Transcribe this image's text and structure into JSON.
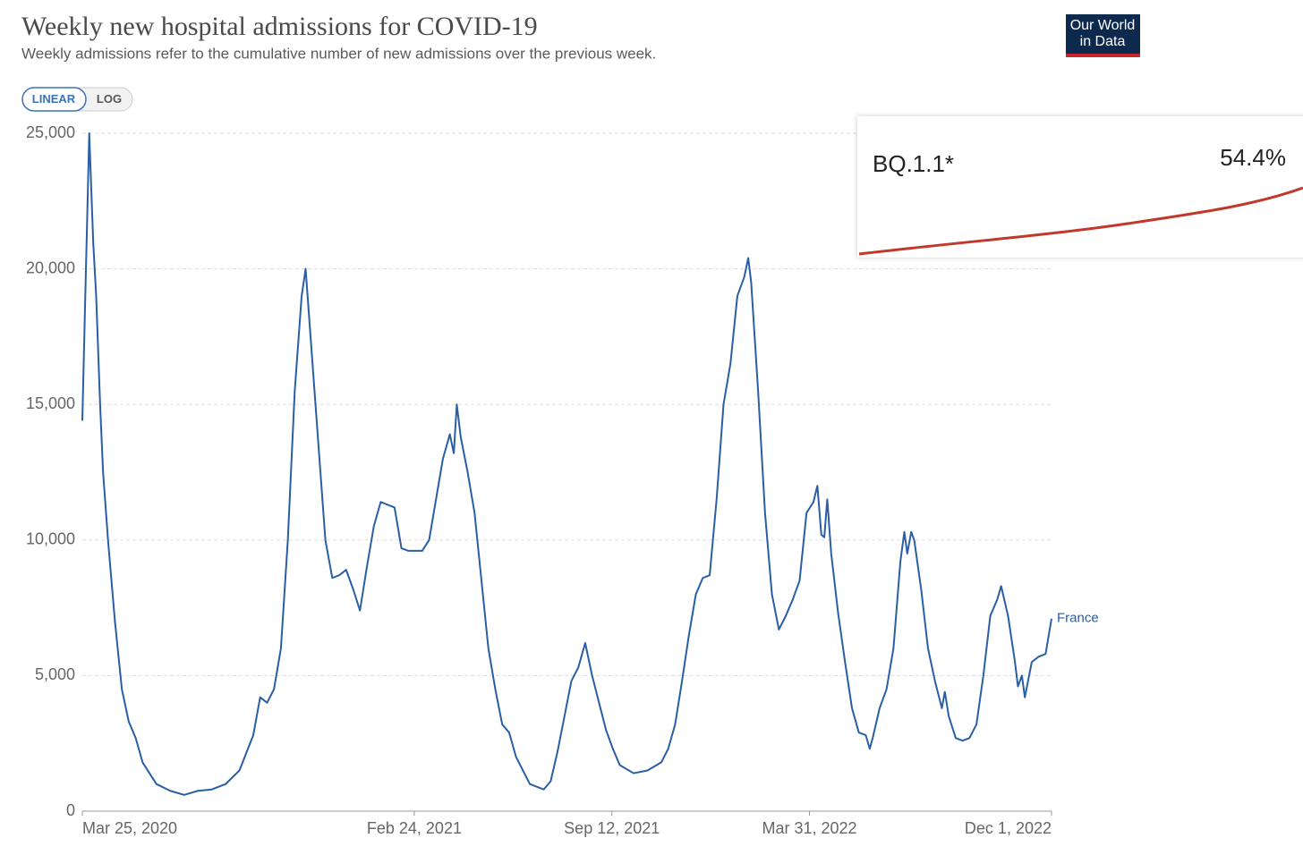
{
  "header": {
    "logo": [
      "Our World",
      "in Data"
    ]
  },
  "controls": [
    "LINEAR",
    "LOG"
  ],
  "overlay": {
    "label": "BQ.1.1*",
    "value": "54.4%"
  },
  "chart_data": {
    "type": "line",
    "title": "Weekly new hospital admissions for COVID-19",
    "subtitle": "Weekly admissions refer to the cumulative number of new admissions over the previous week.",
    "x": [
      "2020-03-25",
      "2020-03-28",
      "2020-04-01",
      "2020-04-05",
      "2020-04-08",
      "2020-04-12",
      "2020-04-15",
      "2020-04-20",
      "2020-04-27",
      "2020-05-04",
      "2020-05-11",
      "2020-05-18",
      "2020-05-25",
      "2020-06-08",
      "2020-06-22",
      "2020-07-06",
      "2020-07-20",
      "2020-08-03",
      "2020-08-17",
      "2020-08-31",
      "2020-09-14",
      "2020-09-21",
      "2020-09-28",
      "2020-10-05",
      "2020-10-12",
      "2020-10-19",
      "2020-10-26",
      "2020-11-02",
      "2020-11-06",
      "2020-11-12",
      "2020-11-19",
      "2020-11-26",
      "2020-12-03",
      "2020-12-10",
      "2020-12-17",
      "2020-12-24",
      "2020-12-31",
      "2021-01-07",
      "2021-01-14",
      "2021-01-21",
      "2021-01-28",
      "2021-02-04",
      "2021-02-11",
      "2021-02-18",
      "2021-02-25",
      "2021-03-04",
      "2021-03-11",
      "2021-03-18",
      "2021-03-25",
      "2021-04-01",
      "2021-04-05",
      "2021-04-08",
      "2021-04-12",
      "2021-04-19",
      "2021-04-26",
      "2021-05-03",
      "2021-05-10",
      "2021-05-17",
      "2021-05-24",
      "2021-05-31",
      "2021-06-07",
      "2021-06-14",
      "2021-06-21",
      "2021-07-05",
      "2021-07-12",
      "2021-07-19",
      "2021-07-26",
      "2021-08-02",
      "2021-08-09",
      "2021-08-16",
      "2021-08-23",
      "2021-08-30",
      "2021-09-06",
      "2021-09-13",
      "2021-09-20",
      "2021-10-04",
      "2021-10-18",
      "2021-11-01",
      "2021-11-08",
      "2021-11-15",
      "2021-11-22",
      "2021-11-29",
      "2021-12-06",
      "2021-12-13",
      "2021-12-20",
      "2021-12-27",
      "2022-01-03",
      "2022-01-10",
      "2022-01-17",
      "2022-01-24",
      "2022-01-28",
      "2022-01-31",
      "2022-02-07",
      "2022-02-14",
      "2022-02-21",
      "2022-02-28",
      "2022-03-07",
      "2022-03-14",
      "2022-03-21",
      "2022-03-28",
      "2022-04-04",
      "2022-04-08",
      "2022-04-12",
      "2022-04-15",
      "2022-04-18",
      "2022-04-22",
      "2022-04-29",
      "2022-05-06",
      "2022-05-13",
      "2022-05-20",
      "2022-05-27",
      "2022-05-31",
      "2022-06-03",
      "2022-06-10",
      "2022-06-17",
      "2022-06-24",
      "2022-07-01",
      "2022-07-05",
      "2022-07-08",
      "2022-07-12",
      "2022-07-15",
      "2022-07-22",
      "2022-07-29",
      "2022-08-05",
      "2022-08-12",
      "2022-08-15",
      "2022-08-19",
      "2022-08-26",
      "2022-09-02",
      "2022-09-09",
      "2022-09-16",
      "2022-09-23",
      "2022-09-30",
      "2022-10-07",
      "2022-10-11",
      "2022-10-18",
      "2022-10-25",
      "2022-10-28",
      "2022-11-01",
      "2022-11-04",
      "2022-11-11",
      "2022-11-18",
      "2022-11-25",
      "2022-12-01"
    ],
    "series": [
      {
        "name": "France",
        "color": "#2a5ea5",
        "values": [
          14400,
          19000,
          25000,
          21000,
          19000,
          15000,
          12500,
          10000,
          7000,
          4500,
          3300,
          2700,
          1800,
          1000,
          750,
          600,
          750,
          800,
          1000,
          1500,
          2800,
          4200,
          4000,
          4500,
          6000,
          10000,
          15500,
          19000,
          20000,
          17000,
          13500,
          10000,
          8600,
          8700,
          8900,
          8200,
          7400,
          9000,
          10500,
          11400,
          11300,
          11200,
          9700,
          9600,
          9600,
          9600,
          10000,
          11500,
          13000,
          13900,
          13200,
          15000,
          13800,
          12500,
          11000,
          8500,
          6000,
          4500,
          3200,
          2900,
          2000,
          1500,
          1000,
          800,
          1100,
          2200,
          3500,
          4800,
          5300,
          6200,
          5000,
          4000,
          3000,
          2300,
          1700,
          1400,
          1500,
          1800,
          2300,
          3200,
          4800,
          6500,
          8000,
          8600,
          8700,
          11500,
          15000,
          16500,
          19000,
          19700,
          20400,
          19500,
          15500,
          11000,
          8000,
          6700,
          7200,
          7800,
          8500,
          11000,
          11400,
          12000,
          10200,
          10100,
          11500,
          9500,
          7300,
          5500,
          3800,
          2900,
          2800,
          2300,
          2700,
          3800,
          4500,
          6000,
          9200,
          10300,
          9500,
          10300,
          10000,
          8200,
          6000,
          4800,
          3800,
          4400,
          3500,
          2700,
          2600,
          2700,
          3200,
          5000,
          7200,
          7800,
          8300,
          7200,
          5500,
          4600,
          5000,
          4200,
          5500,
          5700,
          5800,
          7100
        ]
      }
    ],
    "xlim": [
      "2020-03-25",
      "2022-12-01"
    ],
    "xticks": [
      {
        "value": "2020-03-25",
        "label": "Mar 25, 2020"
      },
      {
        "value": "2021-02-24",
        "label": "Feb 24, 2021"
      },
      {
        "value": "2021-09-12",
        "label": "Sep 12, 2021"
      },
      {
        "value": "2022-03-31",
        "label": "Mar 31, 2022"
      },
      {
        "value": "2022-12-01",
        "label": "Dec 1, 2022"
      }
    ],
    "ylim": [
      0,
      25000
    ],
    "yticks": [
      0,
      {
        "value": 5000,
        "label": "5,000"
      },
      {
        "value": 10000,
        "label": "10,000"
      },
      {
        "value": 15000,
        "label": "15,000"
      },
      {
        "value": 20000,
        "label": "20,000"
      },
      {
        "value": 25000,
        "label": "25,000"
      }
    ],
    "grid": true
  }
}
